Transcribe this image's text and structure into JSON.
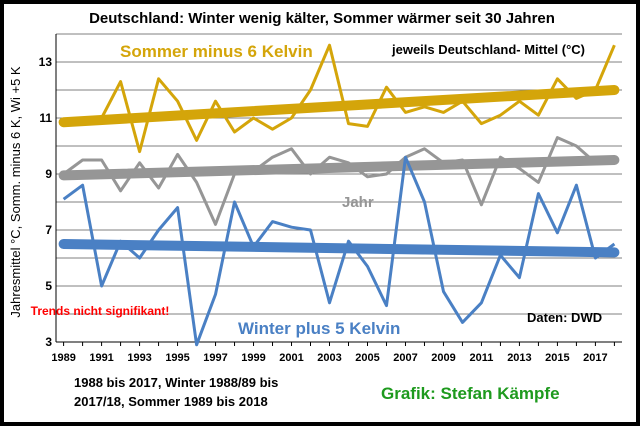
{
  "chart_data": {
    "type": "line",
    "title": "Deutschland: Winter wenig kälter, Sommer wärmer seit 30 Jahren",
    "ylabel": "Jahresmittel °C, Somm. minus 6 K, Wi +5 K",
    "xlabel": "",
    "ylim": [
      3,
      14
    ],
    "xlim": [
      1988.6,
      2018.4
    ],
    "yticks": [
      3,
      5,
      7,
      9,
      11,
      13
    ],
    "xticks": [
      1989,
      1991,
      1993,
      1995,
      1997,
      1999,
      2001,
      2003,
      2005,
      2007,
      2009,
      2011,
      2013,
      2015,
      2017
    ],
    "grid": "horizontal",
    "years": [
      1989,
      1990,
      1991,
      1992,
      1993,
      1994,
      1995,
      1996,
      1997,
      1998,
      1999,
      2000,
      2001,
      2002,
      2003,
      2004,
      2005,
      2006,
      2007,
      2008,
      2009,
      2010,
      2011,
      2012,
      2013,
      2014,
      2015,
      2016,
      2017,
      2018
    ],
    "series": [
      {
        "name": "Sommer minus 6 Kelvin",
        "color": "#d4a50a",
        "values": [
          10.8,
          10.8,
          11.0,
          12.3,
          9.8,
          12.4,
          11.6,
          10.2,
          11.6,
          10.5,
          11.0,
          10.6,
          11.0,
          12.0,
          13.6,
          10.8,
          10.7,
          12.1,
          11.2,
          11.4,
          11.2,
          11.6,
          10.8,
          11.1,
          11.6,
          11.1,
          12.4,
          11.7,
          12.0,
          13.6
        ],
        "trend": [
          10.85,
          12.0
        ]
      },
      {
        "name": "Jahr",
        "color": "#969696",
        "values": [
          9.0,
          9.5,
          9.5,
          8.4,
          9.4,
          8.5,
          9.7,
          8.7,
          7.2,
          9.0,
          9.1,
          9.6,
          9.9,
          9.0,
          9.6,
          9.4,
          8.9,
          9.0,
          9.6,
          9.9,
          9.4,
          9.5,
          7.9,
          9.6,
          9.2,
          8.7,
          10.3,
          10.0,
          9.4,
          9.5
        ],
        "trend": [
          8.95,
          9.5
        ]
      },
      {
        "name": "Winter plus 5 Kelvin",
        "color": "#4a80c4",
        "values": [
          8.1,
          8.6,
          5.0,
          6.6,
          6.0,
          7.0,
          7.8,
          2.9,
          4.7,
          8.0,
          6.4,
          7.3,
          7.1,
          7.0,
          4.4,
          6.6,
          5.7,
          4.3,
          9.6,
          8.0,
          4.8,
          3.7,
          4.4,
          6.1,
          5.3,
          8.3,
          6.9,
          8.6,
          6.0,
          6.5
        ],
        "trend": [
          6.5,
          6.2
        ]
      }
    ],
    "annotations": {
      "summer_label": "Sommer minus 6 Kelvin",
      "year_label": "Jahr",
      "winter_label": "Winter plus 5 Kelvin",
      "subtitle": "jeweils Deutschland- Mittel (°C)",
      "not_significant": "Trends nicht signifikant!",
      "source": "Daten: DWD",
      "period_line1": "1988 bis 2017, Winter 1988/89 bis",
      "period_line2": "2017/18, Sommer 1989 bis 2018",
      "credit": "Grafik: Stefan Kämpfe"
    },
    "colors": {
      "summer": "#d4a50a",
      "year": "#969696",
      "winter": "#4a80c4",
      "red_note": "#ff0000",
      "credit": "#1e9a1e"
    }
  }
}
